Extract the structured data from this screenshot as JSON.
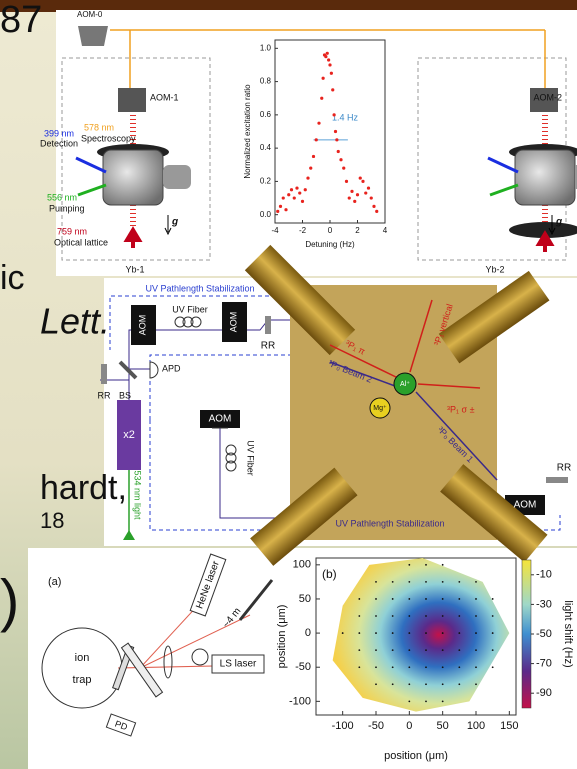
{
  "slide_text": {
    "line1": "87",
    "line2": "ic",
    "line3": "Lett.",
    "line4": "hardt,",
    "line5": "18",
    "line6": ")"
  },
  "figure_yb": {
    "aom0": "AOM-0",
    "aom1": "AOM-1",
    "aom2": "AOM-2",
    "spectroscopy_wavelength": "578 nm",
    "spectroscopy": "Spectroscopy",
    "detection_wavelength": "399 nm",
    "detection": "Detection",
    "pumping_wavelength": "556 nm",
    "pumping": "Pumping",
    "lattice_wavelength": "759 nm",
    "lattice": "Optical lattice",
    "gravity_left": "g",
    "gravity_right": "g",
    "label_left": "Yb-1",
    "label_right": "Yb-2",
    "chart_data": {
      "type": "scatter",
      "x_label": "Detuning (Hz)",
      "y_label": "Normalized excitation ratio",
      "annotation": "1.4 Hz",
      "x": [
        -3.8,
        -3.6,
        -3.4,
        -3.2,
        -3.0,
        -2.8,
        -2.6,
        -2.4,
        -2.2,
        -2.0,
        -1.8,
        -1.6,
        -1.4,
        -1.2,
        -1.0,
        -0.8,
        -0.6,
        -0.5,
        -0.4,
        -0.3,
        -0.2,
        -0.1,
        0,
        0.1,
        0.2,
        0.3,
        0.4,
        0.5,
        0.6,
        0.8,
        1.0,
        1.2,
        1.4,
        1.6,
        1.8,
        2.0,
        2.2,
        2.4,
        2.6,
        2.8,
        3.0,
        3.2,
        3.4
      ],
      "y": [
        0.02,
        0.05,
        0.1,
        0.03,
        0.12,
        0.15,
        0.1,
        0.16,
        0.13,
        0.08,
        0.15,
        0.22,
        0.28,
        0.35,
        0.45,
        0.55,
        0.7,
        0.82,
        0.96,
        0.95,
        0.97,
        0.93,
        0.9,
        0.85,
        0.75,
        0.6,
        0.5,
        0.45,
        0.38,
        0.33,
        0.28,
        0.2,
        0.1,
        0.14,
        0.08,
        0.12,
        0.22,
        0.2,
        0.13,
        0.16,
        0.1,
        0.05,
        0.02
      ],
      "color": "#e8231e",
      "xlim": [
        -4,
        4
      ],
      "ylim": [
        -0.05,
        1.05
      ],
      "xticks": [
        -4,
        -2,
        0,
        2,
        4
      ],
      "yticks": [
        {
          "value": 0,
          "label": "0.0"
        },
        0.2,
        0.4,
        0.6,
        0.8,
        {
          "value": 1,
          "label": "1.0"
        }
      ]
    }
  },
  "figure_al": {
    "stabilization_top": "UV Pathlength Stabilization",
    "stabilization_bottom": "UV Pathlength Stabilization",
    "fiber_top": "UV Fiber",
    "fiber_bottom": "UV Fiber",
    "aom_1": "AOM",
    "aom_2": "AOM",
    "aom_3": "AOM",
    "aom_4": "AOM",
    "rr_top": "RR",
    "rr_left": "RR",
    "rr_right": "RR",
    "apd": "APD",
    "bs": "BS",
    "doubler": "x2",
    "light": "534 nm light",
    "inset": {
      "p1_pi": "³P₁ π",
      "p1_vertical": "³P₁ vertical",
      "p0_beam2": "³P₀ Beam 2",
      "al": "Al⁺",
      "mg": "Mg⁺",
      "p1_sigma": "³P₁ σ ±",
      "p0_beam1": "³P₀ Beam 1"
    }
  },
  "figure_ls": {
    "panel_a": "(a)",
    "hene_laser": "HeNe laser",
    "distance": "~4 m",
    "ion": "ion",
    "trap": "trap",
    "ls_laser": "LS laser",
    "pd": "PD",
    "chart_data": {
      "type": "heatmap",
      "panel": "(b)",
      "x_label": "position (μm)",
      "y_label": "position (μm)",
      "colorbar_label": "light shift (Hz)",
      "xlim": [
        -140,
        160
      ],
      "ylim": [
        -120,
        110
      ],
      "xticks": [
        -100,
        -50,
        0,
        50,
        100,
        150
      ],
      "yticks": [
        100,
        50,
        0,
        -50,
        -100
      ],
      "clim": [
        -100,
        0
      ],
      "cticks": [
        -10,
        -30,
        -50,
        -70,
        -90
      ]
    }
  }
}
